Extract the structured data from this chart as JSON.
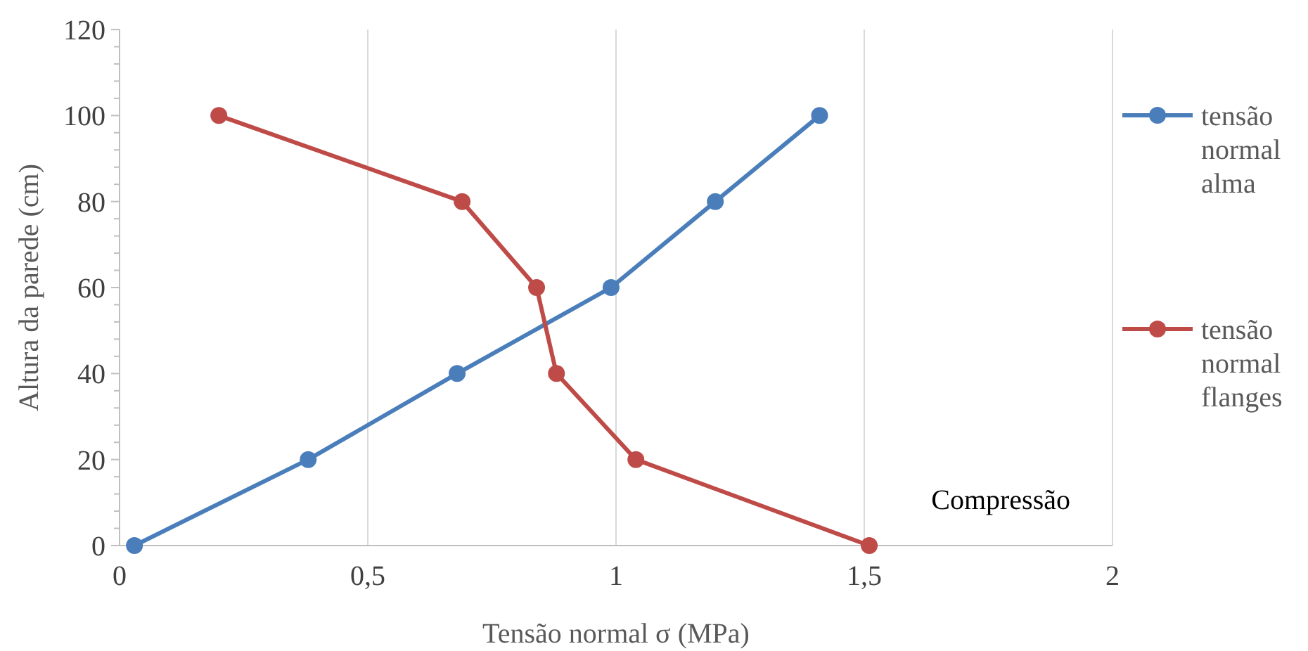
{
  "chart_data": {
    "type": "line",
    "xlabel": "Tensão normal σ (MPa)",
    "ylabel": "Altura da parede  (cm)",
    "annotations": [
      "Compressão"
    ],
    "xlim": [
      0,
      2
    ],
    "xticks": [
      0,
      {
        "value": 0.5,
        "label": "0,5"
      },
      1,
      {
        "value": 1.5,
        "label": "1,5"
      },
      2
    ],
    "ylim": [
      0,
      120
    ],
    "yticks": [
      0,
      20,
      40,
      60,
      80,
      100,
      120
    ],
    "grid": "x",
    "legend": "right",
    "marker": "circle",
    "line_style": "solid",
    "series": [
      {
        "name": "tensão normal alma",
        "color": "#4a7ebb",
        "x": [
          0.03,
          0.38,
          0.68,
          0.99,
          1.2,
          1.41
        ],
        "values": [
          0,
          20,
          40,
          60,
          80,
          100
        ]
      },
      {
        "name": "tensão normal flanges",
        "color": "#be4b48",
        "x": [
          0.2,
          0.69,
          0.84,
          0.88,
          1.04,
          1.51
        ],
        "values": [
          100,
          80,
          60,
          40,
          20,
          0
        ]
      }
    ]
  }
}
